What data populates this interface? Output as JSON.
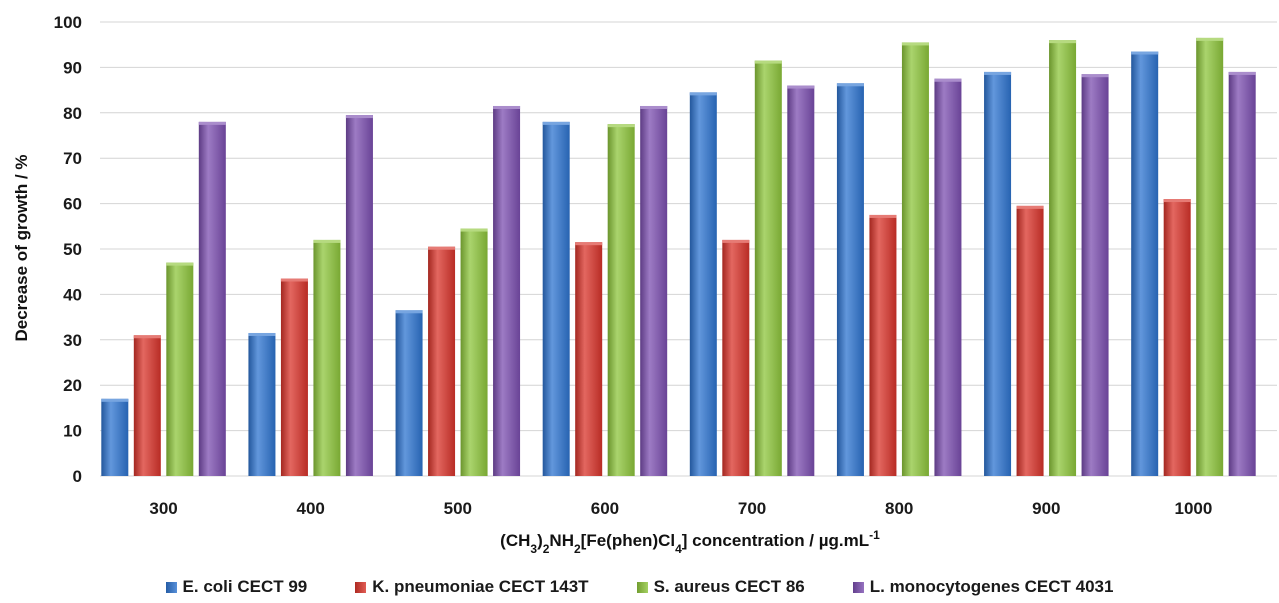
{
  "chart_data": {
    "type": "bar",
    "categories": [
      "300",
      "400",
      "500",
      "600",
      "700",
      "800",
      "900",
      "1000"
    ],
    "series": [
      {
        "name": "E. coli CECT 99",
        "color": "#2e74d0",
        "values": [
          17,
          31.5,
          36.5,
          78,
          84.5,
          86.5,
          89,
          93.5
        ]
      },
      {
        "name": "K. pneumoniae CECT 143T",
        "color": "#d9342b",
        "values": [
          31,
          43.5,
          50.5,
          51.5,
          52,
          57.5,
          59.5,
          61
        ]
      },
      {
        "name": "S. aureus CECT 86",
        "color": "#8ec63c",
        "values": [
          47,
          52,
          54.5,
          77.5,
          91.5,
          95.5,
          96,
          96.5
        ]
      },
      {
        "name": "L. monocytogenes CECT 4031",
        "color": "#7c4fb0",
        "values": [
          78,
          79.5,
          81.5,
          81.5,
          86,
          87.5,
          88.5,
          89
        ]
      }
    ],
    "yticks": [
      "0",
      "10",
      "20",
      "30",
      "40",
      "50",
      "60",
      "70",
      "80",
      "90",
      "100"
    ],
    "ylim": [
      0,
      100
    ],
    "ylabel": "Decrease of growth / %",
    "xlabel": {
      "pre": "(CH",
      "sub1": "3",
      "mid1": ")",
      "sub2": "2",
      "mid2": "NH",
      "sub3": "2",
      "mid3": "[Fe(phen)Cl",
      "sub4": "4",
      "mid4": "] concentration  / µg.mL",
      "sup": "-1"
    },
    "grid": true,
    "legend_position": "bottom"
  }
}
